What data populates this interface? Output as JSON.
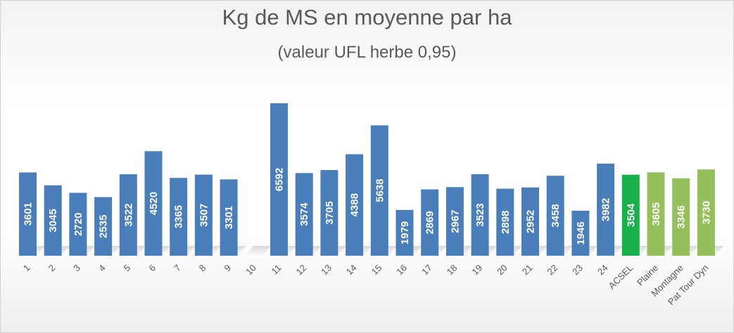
{
  "chart_data": {
    "type": "bar",
    "title": "Kg de MS en moyenne par ha",
    "subtitle": "(valeur UFL herbe 0,95)",
    "xlabel": "",
    "ylabel": "",
    "ylim": [
      0,
      7000
    ],
    "grid": false,
    "legend": "none",
    "categories": [
      "1",
      "2",
      "3",
      "4",
      "5",
      "6",
      "7",
      "8",
      "9",
      "10",
      "11",
      "12",
      "13",
      "14",
      "15",
      "16",
      "17",
      "18",
      "19",
      "20",
      "21",
      "22",
      "23",
      "24",
      "ACSEL",
      "Plaine",
      "Montagne",
      "Pat Tour Dyn"
    ],
    "values": [
      3601,
      3045,
      2720,
      2535,
      3522,
      4520,
      3365,
      3507,
      3301,
      null,
      6592,
      3574,
      3705,
      4388,
      5638,
      1979,
      2869,
      2967,
      3523,
      2898,
      2952,
      3458,
      1946,
      3982,
      3504,
      3605,
      3346,
      3730
    ],
    "labels": [
      "3601",
      "3045",
      "2720",
      "2535",
      "3522",
      "4520",
      "3365",
      "3507",
      "3301",
      "",
      "6592",
      "3574",
      "3705",
      "4388",
      "5638",
      "1979",
      "2869",
      "2967",
      "3523",
      "2898",
      "2952",
      "3458",
      "1946",
      "3982",
      "3504",
      "3605",
      "3346",
      "3730"
    ],
    "colors": [
      "#4a7ebb",
      "#4a7ebb",
      "#4a7ebb",
      "#4a7ebb",
      "#4a7ebb",
      "#4a7ebb",
      "#4a7ebb",
      "#4a7ebb",
      "#4a7ebb",
      "#4a7ebb",
      "#4a7ebb",
      "#4a7ebb",
      "#4a7ebb",
      "#4a7ebb",
      "#4a7ebb",
      "#4a7ebb",
      "#4a7ebb",
      "#4a7ebb",
      "#4a7ebb",
      "#4a7ebb",
      "#4a7ebb",
      "#4a7ebb",
      "#4a7ebb",
      "#4a7ebb",
      "#17b04a",
      "#94bf5a",
      "#94bf5a",
      "#94bf5a"
    ]
  }
}
